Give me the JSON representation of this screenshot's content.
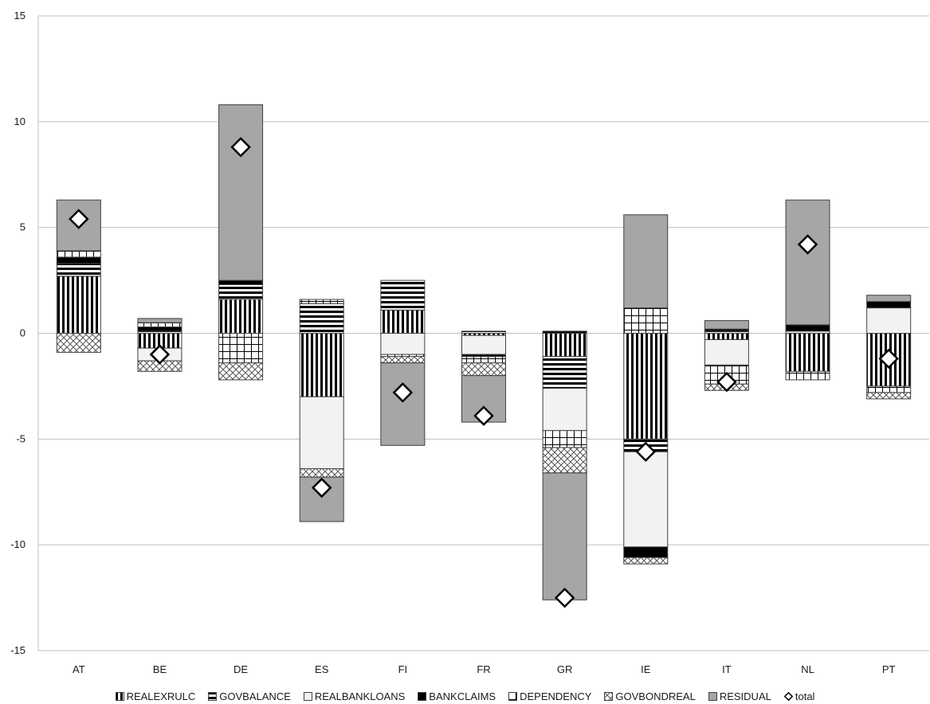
{
  "chart_data": {
    "type": "bar",
    "stacked": true,
    "categories": [
      "AT",
      "BE",
      "DE",
      "ES",
      "FI",
      "FR",
      "GR",
      "IE",
      "IT",
      "NL",
      "PT"
    ],
    "series": [
      {
        "name": "REALEXRULC",
        "pattern": "vertical-stripes",
        "values": [
          2.7,
          -0.7,
          1.6,
          -3.0,
          1.1,
          -0.1,
          -1.1,
          -5.0,
          -0.3,
          -1.8,
          -2.5
        ]
      },
      {
        "name": "GOVBALANCE",
        "pattern": "horizontal-stripes",
        "values": [
          0.6,
          0.1,
          0.7,
          1.4,
          1.4,
          0.1,
          -1.5,
          -0.6,
          0.1,
          0.0,
          0.0
        ]
      },
      {
        "name": "REALBANKLOANS",
        "pattern": "light-fill",
        "values": [
          0.0,
          -0.6,
          0.0,
          -3.4,
          -1.0,
          -0.9,
          -2.0,
          -4.5,
          -1.2,
          0.1,
          1.2
        ]
      },
      {
        "name": "BANKCLAIMS",
        "pattern": "solid-black",
        "values": [
          0.3,
          0.2,
          0.2,
          0.0,
          0.0,
          -0.1,
          0.1,
          -0.5,
          0.1,
          0.3,
          0.3
        ]
      },
      {
        "name": "DEPENDENCY",
        "pattern": "grid",
        "values": [
          0.3,
          0.2,
          -1.4,
          0.2,
          -0.1,
          -0.3,
          -0.8,
          1.2,
          -0.9,
          -0.4,
          -0.3
        ]
      },
      {
        "name": "GOVBONDREAL",
        "pattern": "crosshatch",
        "values": [
          -0.9,
          -0.5,
          -0.8,
          -0.4,
          -0.3,
          -0.6,
          -1.2,
          -0.3,
          -0.3,
          0.0,
          -0.3
        ]
      },
      {
        "name": "RESIDUAL",
        "pattern": "solid-gray",
        "values": [
          2.4,
          0.2,
          8.3,
          -2.1,
          -3.9,
          -2.2,
          -6.0,
          4.4,
          0.4,
          5.9,
          0.3
        ]
      }
    ],
    "total": {
      "name": "total",
      "marker": "diamond",
      "values": [
        5.4,
        -1.0,
        8.8,
        -7.3,
        -2.8,
        -3.9,
        -12.5,
        -5.6,
        -2.3,
        4.2,
        -1.2
      ]
    },
    "ylim": [
      -15,
      15
    ],
    "yticks": [
      15,
      10,
      5,
      0,
      -5,
      -10,
      -15
    ],
    "grid": true,
    "legend_position": "bottom",
    "colors": {
      "residual": "#a6a6a6",
      "light": "#f2f2f2",
      "solid": "#000000",
      "outline": "#404040",
      "grid": "#bfbfbf"
    }
  }
}
